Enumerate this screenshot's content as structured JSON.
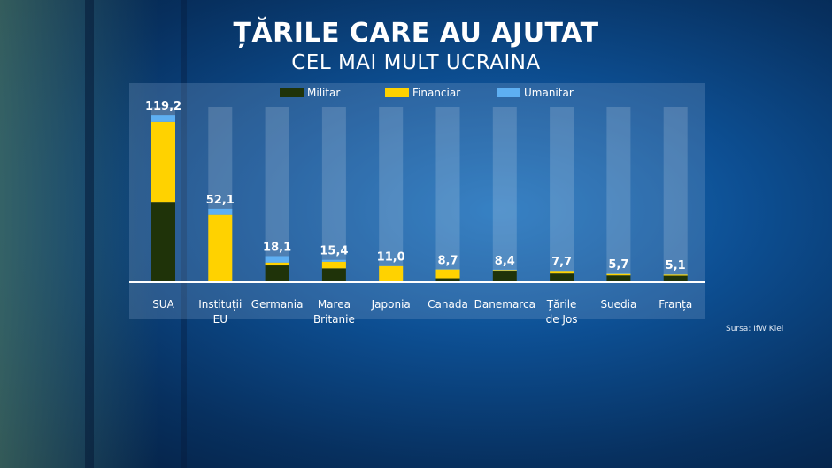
{
  "title_line1": "ȚĂRILE CARE AU AJUTAT",
  "title_line2": "CEL MAI MULT UCRAINA",
  "source": "Sursa: IfW Kiel",
  "chart_data": {
    "type": "bar",
    "stacked": true,
    "title": "ȚĂRILE CARE AU AJUTAT CEL MAI MULT UCRAINA",
    "categories": [
      [
        "SUA"
      ],
      [
        "Instituții",
        "EU"
      ],
      [
        "Germania"
      ],
      [
        "Marea",
        "Britanie"
      ],
      [
        "Japonia"
      ],
      [
        "Canada"
      ],
      [
        "Danemarca"
      ],
      [
        "Țările",
        "de Jos"
      ],
      [
        "Suedia"
      ],
      [
        "Franța"
      ]
    ],
    "totals_labels": [
      "119,2",
      "52,1",
      "18,1",
      "15,4",
      "11,0",
      "8,7",
      "8,4",
      "7,7",
      "5,7",
      "5,1"
    ],
    "series": [
      {
        "name": "Militar",
        "color": "#1f3309",
        "values": [
          57.0,
          0.0,
          11.4,
          9.3,
          0.0,
          2.2,
          7.6,
          5.6,
          4.3,
          4.1
        ]
      },
      {
        "name": "Financiar",
        "color": "#ffd200",
        "values": [
          57.3,
          47.8,
          2.1,
          4.8,
          10.9,
          6.3,
          0.5,
          1.9,
          1.0,
          0.8
        ]
      },
      {
        "name": "Umanitar",
        "color": "#5eaff2",
        "values": [
          4.9,
          4.3,
          4.6,
          1.3,
          0.1,
          0.2,
          0.3,
          0.2,
          0.4,
          0.2
        ]
      }
    ],
    "legend_position": "top",
    "ylim": [
      0,
      125
    ],
    "grid": false
  }
}
